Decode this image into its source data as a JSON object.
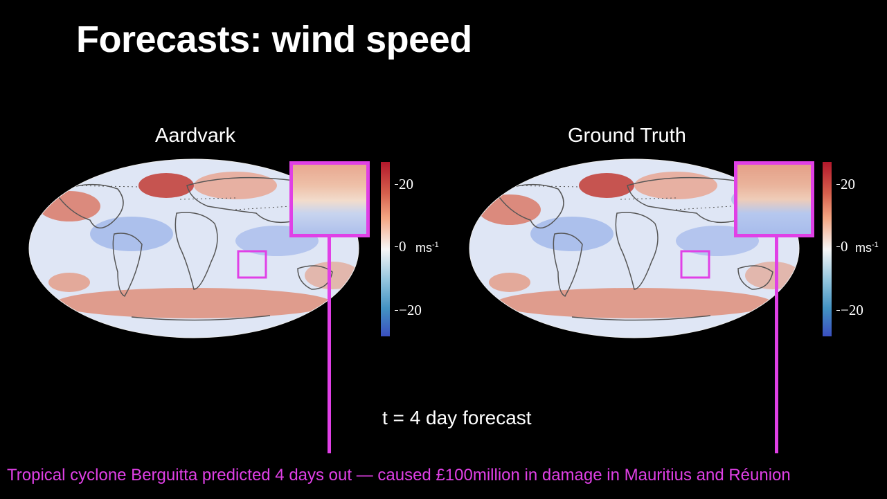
{
  "slide": {
    "title": "Forecasts: wind speed",
    "forecast_label": "t = 4 day forecast",
    "caption": "Tropical cyclone Berguitta predicted 4 days out — caused £100million in damage in Mauritius and Réunion"
  },
  "panels": [
    {
      "title": "Aardvark",
      "colorbar": {
        "ticks": [
          "20",
          "0",
          "−20"
        ],
        "unit": "ms",
        "unit_exp": "-1"
      }
    },
    {
      "title": "Ground Truth",
      "colorbar": {
        "ticks": [
          "20",
          "0",
          "−20"
        ],
        "unit": "ms",
        "unit_exp": "-1"
      }
    }
  ],
  "colors": {
    "highlight": "#e040e6",
    "positive": "#b2182b",
    "neutral": "#f7f7f7",
    "negative": "#3a4fc0",
    "land_outline": "#555555"
  }
}
